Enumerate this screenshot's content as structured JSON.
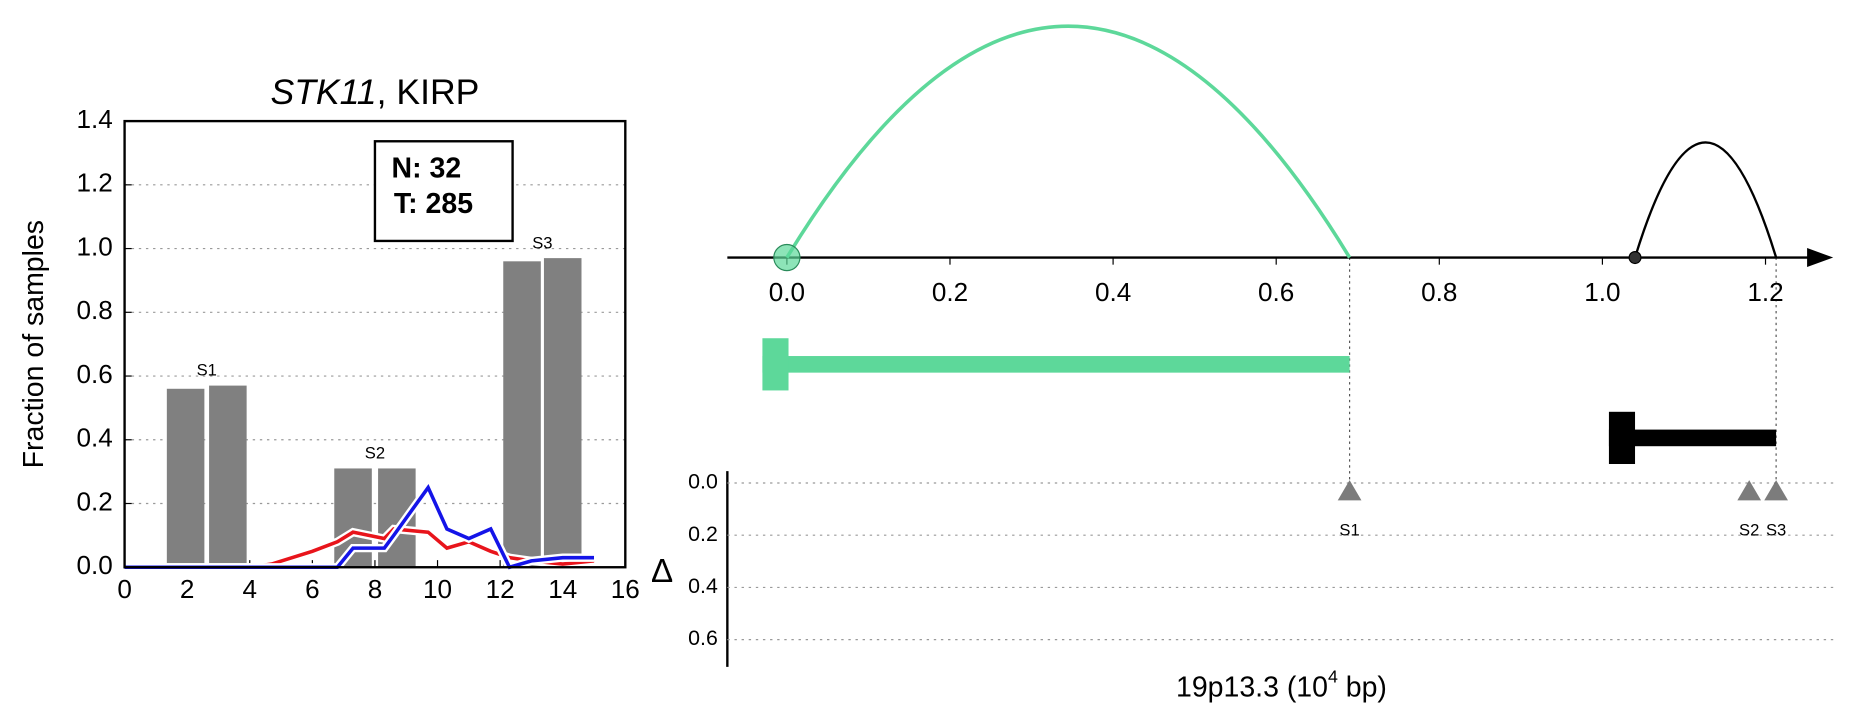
{
  "chart_data": [
    {
      "type": "bar",
      "title": [
        "STK11",
        ", KIRP"
      ],
      "ylabel": "Fraction of samples",
      "xlim": [
        0,
        16
      ],
      "xticks": [
        0,
        2,
        4,
        6,
        8,
        10,
        12,
        14,
        16
      ],
      "ylim": [
        0,
        1.4
      ],
      "yticks": [
        {
          "value": 0,
          "label": "0.0"
        },
        0.2,
        0.4,
        0.6,
        0.8,
        {
          "value": 1,
          "label": "1.0"
        },
        1.2,
        1.4
      ],
      "grid": true,
      "box_text": [
        "N: 32",
        "T: 285"
      ],
      "bars": {
        "x": [
          1.95,
          3.3,
          7.3,
          8.7,
          12.7,
          14.0
        ],
        "values": [
          0.56,
          0.57,
          0.31,
          0.31,
          0.96,
          0.97
        ],
        "color": "#808080"
      },
      "bar_labels": [
        "S1",
        "S2",
        "S3"
      ],
      "x": [
        0,
        2,
        4,
        4.7,
        6,
        6.8,
        7.3,
        8.3,
        8.6,
        9.7,
        10.3,
        11,
        11.7,
        12.3,
        13,
        14,
        15
      ],
      "series": [
        {
          "color": "#e8141b",
          "values": [
            0,
            0,
            0,
            0.01,
            0.05,
            0.08,
            0.11,
            0.09,
            0.12,
            0.11,
            0.06,
            0.08,
            0.05,
            0.03,
            0.02,
            0.01,
            0.02
          ]
        },
        {
          "color": "#1414e8",
          "values": [
            0,
            0,
            0,
            0,
            0,
            0,
            0.06,
            0.06,
            0.1,
            0.25,
            0.12,
            0.09,
            0.12,
            0,
            0.02,
            0.03,
            0.03
          ]
        }
      ]
    },
    {
      "type": "arc",
      "xlim": [
        -0.073,
        1.283
      ],
      "xticks": [
        {
          "value": 0,
          "label": "0.0"
        },
        0.2,
        0.4,
        0.6,
        0.8,
        {
          "value": 1,
          "label": "1.0"
        },
        1.2
      ],
      "xlabel": [
        "19p13.3 (10",
        "4",
        " bp)"
      ],
      "arcs": [
        {
          "start": 0,
          "end": 0.69,
          "color": "#5dd89a"
        },
        {
          "start": 1.04,
          "end": 1.213,
          "color": "#000000"
        }
      ],
      "genes": [
        {
          "start": -0.03,
          "end": 0.69,
          "color": "#5dd89a"
        },
        {
          "start": 1.008,
          "end": 1.213,
          "color": "#000000"
        }
      ],
      "ylabel": "Δ",
      "ylim": [
        0,
        0.7
      ],
      "yticks": [
        {
          "value": 0,
          "label": "0.0"
        },
        0.2,
        0.4,
        0.6
      ],
      "markers": {
        "names": [
          "S1",
          "S2",
          "S3"
        ],
        "x": [
          0.69,
          1.18,
          1.213
        ],
        "values": [
          0.03,
          0.03,
          0.03
        ],
        "color": "#6e6e6e"
      }
    }
  ]
}
